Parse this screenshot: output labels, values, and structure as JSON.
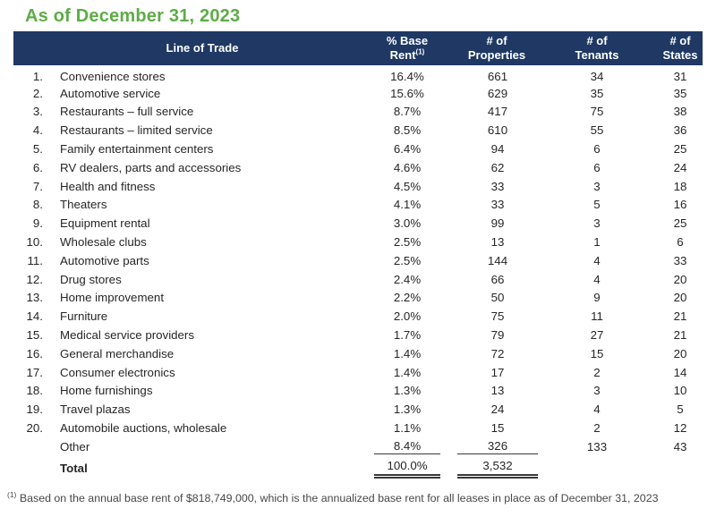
{
  "title": "As of December 31, 2023",
  "colors": {
    "header_bg": "#1F3864",
    "title_green": "#5CAD45"
  },
  "table": {
    "headers": {
      "line_of_trade": "Line of Trade",
      "base_rent_line1": "% Base",
      "base_rent_line2": "Rent",
      "base_rent_sup": "(1)",
      "properties_line1": "# of",
      "properties_line2": "Properties",
      "tenants_line1": "# of",
      "tenants_line2": "Tenants",
      "states_line1": "# of",
      "states_line2": "States"
    },
    "rows": [
      {
        "num": "1.",
        "label": "Convenience stores",
        "pct": "16.4%",
        "properties": "661",
        "tenants": "34",
        "states": "31"
      },
      {
        "num": "2.",
        "label": "Automotive service",
        "pct": "15.6%",
        "properties": "629",
        "tenants": "35",
        "states": "35"
      },
      {
        "num": "3.",
        "label": "Restaurants – full service",
        "pct": "8.7%",
        "properties": "417",
        "tenants": "75",
        "states": "38"
      },
      {
        "num": "4.",
        "label": "Restaurants – limited service",
        "pct": "8.5%",
        "properties": "610",
        "tenants": "55",
        "states": "36"
      },
      {
        "num": "5.",
        "label": "Family entertainment centers",
        "pct": "6.4%",
        "properties": "94",
        "tenants": "6",
        "states": "25"
      },
      {
        "num": "6.",
        "label": "RV dealers, parts and accessories",
        "pct": "4.6%",
        "properties": "62",
        "tenants": "6",
        "states": "24"
      },
      {
        "num": "7.",
        "label": "Health and fitness",
        "pct": "4.5%",
        "properties": "33",
        "tenants": "3",
        "states": "18"
      },
      {
        "num": "8.",
        "label": "Theaters",
        "pct": "4.1%",
        "properties": "33",
        "tenants": "5",
        "states": "16"
      },
      {
        "num": "9.",
        "label": "Equipment rental",
        "pct": "3.0%",
        "properties": "99",
        "tenants": "3",
        "states": "25"
      },
      {
        "num": "10.",
        "label": "Wholesale clubs",
        "pct": "2.5%",
        "properties": "13",
        "tenants": "1",
        "states": "6"
      },
      {
        "num": "11.",
        "label": "Automotive parts",
        "pct": "2.5%",
        "properties": "144",
        "tenants": "4",
        "states": "33"
      },
      {
        "num": "12.",
        "label": "Drug stores",
        "pct": "2.4%",
        "properties": "66",
        "tenants": "4",
        "states": "20"
      },
      {
        "num": "13.",
        "label": "Home improvement",
        "pct": "2.2%",
        "properties": "50",
        "tenants": "9",
        "states": "20"
      },
      {
        "num": "14.",
        "label": "Furniture",
        "pct": "2.0%",
        "properties": "75",
        "tenants": "11",
        "states": "21"
      },
      {
        "num": "15.",
        "label": "Medical service providers",
        "pct": "1.7%",
        "properties": "79",
        "tenants": "27",
        "states": "21"
      },
      {
        "num": "16.",
        "label": "General merchandise",
        "pct": "1.4%",
        "properties": "72",
        "tenants": "15",
        "states": "20"
      },
      {
        "num": "17.",
        "label": "Consumer electronics",
        "pct": "1.4%",
        "properties": "17",
        "tenants": "2",
        "states": "14"
      },
      {
        "num": "18.",
        "label": "Home furnishings",
        "pct": "1.3%",
        "properties": "13",
        "tenants": "3",
        "states": "10"
      },
      {
        "num": "19.",
        "label": "Travel plazas",
        "pct": "1.3%",
        "properties": "24",
        "tenants": "4",
        "states": "5"
      },
      {
        "num": "20.",
        "label": "Automobile auctions, wholesale",
        "pct": "1.1%",
        "properties": "15",
        "tenants": "2",
        "states": "12"
      }
    ],
    "other": {
      "label": "Other",
      "pct": "8.4%",
      "properties": "326",
      "tenants": "133",
      "states": "43"
    },
    "total": {
      "label": "Total",
      "pct": "100.0%",
      "properties": "3,532"
    }
  },
  "footnote": {
    "sup": "(1)",
    "text": "Based on the annual base rent of $818,749,000, which is the annualized base rent for all leases in place as of December 31, 2023"
  }
}
